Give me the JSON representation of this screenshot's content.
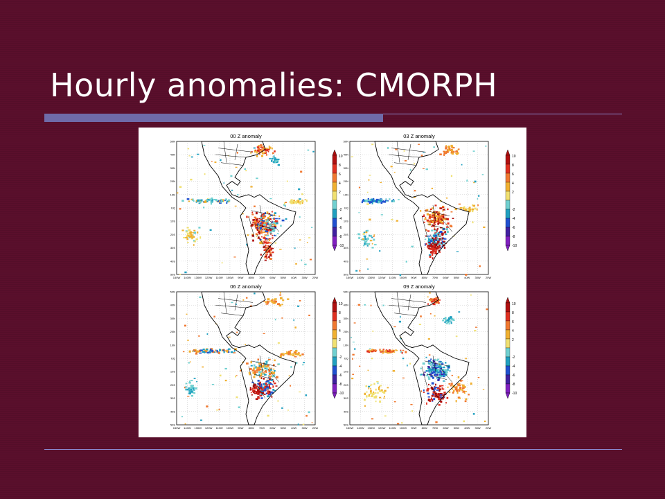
{
  "slide": {
    "title": "Hourly anomalies: CMORPH"
  },
  "figure": {
    "panels": [
      {
        "title": "00 Z anomaly"
      },
      {
        "title": "03 Z anomaly"
      },
      {
        "title": "06 Z anomaly"
      },
      {
        "title": "09 Z anomaly"
      }
    ],
    "colorbar": {
      "labels": [
        "10",
        "8",
        "6",
        "4",
        "2",
        "-2",
        "-4",
        "-6",
        "-8",
        "-10"
      ],
      "colors": [
        "#b01010",
        "#e03020",
        "#f07830",
        "#f0b030",
        "#f0e070",
        "#70d0d0",
        "#20a0c0",
        "#2050d0",
        "#4020a0",
        "#8020c0"
      ]
    },
    "lat_labels": [
      "50N",
      "40N",
      "30N",
      "20N",
      "10N",
      "EQ",
      "10S",
      "20S",
      "30S",
      "40S",
      "50S"
    ],
    "lon_labels": [
      "150W",
      "140W",
      "130W",
      "120W",
      "110W",
      "100W",
      "90W",
      "80W",
      "70W",
      "60W",
      "50W",
      "40W",
      "30W",
      "20W"
    ]
  }
}
